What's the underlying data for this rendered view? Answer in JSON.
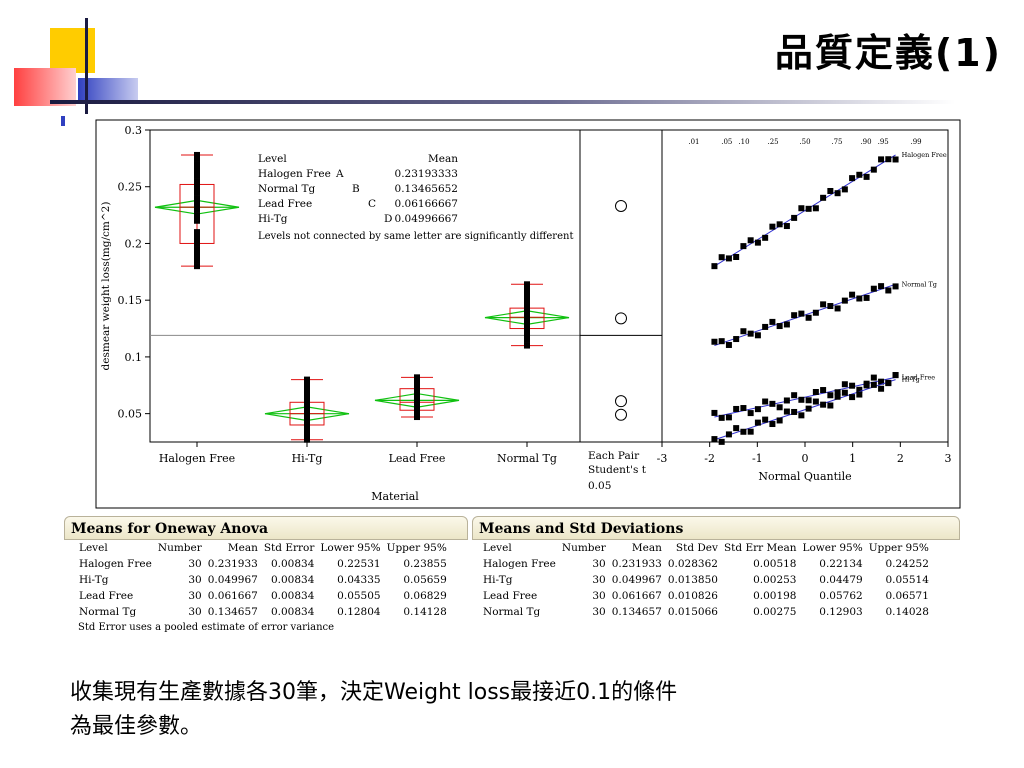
{
  "slide": {
    "title": "品質定義(1)",
    "caption_line1": "收集現有生產數據各30筆，決定Weight loss最接近0.1的條件",
    "caption_line2": "為最佳參數。"
  },
  "chart_data": [
    {
      "type": "box",
      "ylabel": "desmear weight loss(mg/cm^2)",
      "xlabel": "Material",
      "ylim": [
        0.025,
        0.3
      ],
      "yticks": [
        "0.05",
        "0.1",
        "0.15",
        "0.2",
        "0.25",
        "0.3"
      ],
      "categories": [
        "Halogen Free",
        "Hi-Tg",
        "Lead Free",
        "Normal Tg"
      ],
      "grand_mean": 0.119,
      "groups": [
        {
          "name": "Halogen Free",
          "mean": 0.231933,
          "q1": 0.2,
          "median": 0.232,
          "q3": 0.252,
          "min": 0.18,
          "max": 0.278,
          "points": [
            0.18,
            0.185,
            0.19,
            0.195,
            0.2,
            0.205,
            0.21,
            0.22,
            0.225,
            0.23,
            0.235,
            0.24,
            0.245,
            0.25,
            0.255,
            0.26,
            0.265,
            0.27,
            0.275,
            0.278
          ]
        },
        {
          "name": "Hi-Tg",
          "mean": 0.049967,
          "q1": 0.04,
          "median": 0.05,
          "q3": 0.06,
          "min": 0.027,
          "max": 0.08,
          "points": [
            0.027,
            0.03,
            0.035,
            0.038,
            0.042,
            0.045,
            0.048,
            0.05,
            0.052,
            0.055,
            0.058,
            0.062,
            0.066,
            0.07,
            0.075,
            0.08
          ]
        },
        {
          "name": "Lead Free",
          "mean": 0.061667,
          "q1": 0.053,
          "median": 0.06,
          "q3": 0.072,
          "min": 0.047,
          "max": 0.082,
          "points": [
            0.047,
            0.05,
            0.053,
            0.055,
            0.058,
            0.06,
            0.062,
            0.065,
            0.068,
            0.07,
            0.073,
            0.076,
            0.079,
            0.082
          ]
        },
        {
          "name": "Normal Tg",
          "mean": 0.134657,
          "q1": 0.125,
          "median": 0.135,
          "q3": 0.143,
          "min": 0.11,
          "max": 0.164,
          "points": [
            0.11,
            0.115,
            0.118,
            0.122,
            0.125,
            0.128,
            0.131,
            0.134,
            0.137,
            0.14,
            0.143,
            0.146,
            0.15,
            0.155,
            0.16,
            0.164
          ]
        }
      ],
      "legend_table": {
        "header_level": "Level",
        "header_mean": "Mean",
        "rows": [
          {
            "level": "Halogen Free",
            "letter": "A",
            "mean": "0.23193333"
          },
          {
            "level": "Normal Tg",
            "letter": "B",
            "mean": "0.13465652"
          },
          {
            "level": "Lead Free",
            "letter": "C",
            "mean": "0.06166667"
          },
          {
            "level": "Hi-Tg",
            "letter": "D",
            "mean": "0.04996667"
          }
        ],
        "note": "Levels not connected by same letter are significantly different"
      },
      "comparison_label_1": "Each Pair",
      "comparison_label_2": "Student's t",
      "comparison_label_3": "0.05",
      "comparison_circles": [
        0.233,
        0.134,
        0.061,
        0.049
      ]
    },
    {
      "type": "scatter",
      "xlabel": "Normal Quantile",
      "xlim": [
        -3,
        3
      ],
      "xticks": [
        "-3",
        "-2",
        "-1",
        "0",
        "1",
        "2",
        "3"
      ],
      "top_ticks": [
        ".01",
        ".05",
        ".10",
        ".25",
        ".50",
        ".75",
        ".90",
        ".95",
        ".99"
      ],
      "series": [
        {
          "name": "Halogen Free",
          "x_start": -1.9,
          "x_end": 1.9,
          "y_start": 0.18,
          "y_end": 0.278
        },
        {
          "name": "Normal Tg",
          "x_start": -1.9,
          "x_end": 1.9,
          "y_start": 0.11,
          "y_end": 0.164
        },
        {
          "name": "Lead Free",
          "x_start": -1.9,
          "x_end": 1.9,
          "y_start": 0.047,
          "y_end": 0.082
        },
        {
          "name": "Hi-Tg",
          "x_start": -1.9,
          "x_end": 1.9,
          "y_start": 0.027,
          "y_end": 0.08
        }
      ]
    }
  ],
  "anova": {
    "title": "Means for Oneway Anova",
    "headers": [
      "Level",
      "Number",
      "Mean",
      "Std Error",
      "Lower 95%",
      "Upper 95%"
    ],
    "rows": [
      [
        "Halogen Free",
        "30",
        "0.231933",
        "0.00834",
        "0.22531",
        "0.23855"
      ],
      [
        "Hi-Tg",
        "30",
        "0.049967",
        "0.00834",
        "0.04335",
        "0.05659"
      ],
      [
        "Lead Free",
        "30",
        "0.061667",
        "0.00834",
        "0.05505",
        "0.06829"
      ],
      [
        "Normal Tg",
        "30",
        "0.134657",
        "0.00834",
        "0.12804",
        "0.14128"
      ]
    ],
    "note": "Std Error uses a pooled estimate of error variance"
  },
  "stddev": {
    "title": "Means and Std Deviations",
    "headers": [
      "Level",
      "Number",
      "Mean",
      "Std Dev",
      "Std Err Mean",
      "Lower 95%",
      "Upper 95%"
    ],
    "rows": [
      [
        "Halogen Free",
        "30",
        "0.231933",
        "0.028362",
        "0.00518",
        "0.22134",
        "0.24252"
      ],
      [
        "Hi-Tg",
        "30",
        "0.049967",
        "0.013850",
        "0.00253",
        "0.04479",
        "0.05514"
      ],
      [
        "Lead Free",
        "30",
        "0.061667",
        "0.010826",
        "0.00198",
        "0.05762",
        "0.06571"
      ],
      [
        "Normal Tg",
        "30",
        "0.134657",
        "0.015066",
        "0.00275",
        "0.12903",
        "0.14028"
      ]
    ]
  },
  "colors": {
    "box": "#e01010",
    "diamond": "#10c010",
    "points": "#000000",
    "qq_line": "#3030d0",
    "deco_yellow": "#ffcc00",
    "deco_red": "#ff5050",
    "deco_blue": "#4050d0"
  }
}
